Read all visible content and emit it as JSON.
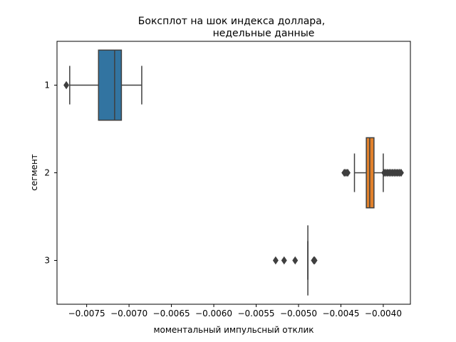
{
  "chart_data": {
    "type": "box",
    "orientation": "horizontal",
    "title_lines": [
      "Бокcплот на шок индекса доллара,",
      "недельные данные"
    ],
    "xlabel": "моментальный импульсный отклик",
    "ylabel": "сегмент",
    "xlim": [
      -0.00785,
      -0.00368
    ],
    "x_ticks": [
      -0.0075,
      -0.007,
      -0.0065,
      -0.006,
      -0.0055,
      -0.005,
      -0.0045,
      -0.004
    ],
    "x_tick_labels": [
      "−0.0075",
      "−0.0070",
      "−0.0065",
      "−0.0060",
      "−0.0055",
      "−0.0050",
      "−0.0045",
      "−0.0040"
    ],
    "categories": [
      "1",
      "2",
      "3"
    ],
    "grid": false,
    "boxes": [
      {
        "category": "1",
        "color": "#3274a1",
        "whisker_low": -0.0077,
        "q1": -0.00736,
        "median": -0.00717,
        "q3": -0.00709,
        "whisker_high": -0.00685,
        "outliers": [
          -0.00774
        ]
      },
      {
        "category": "2",
        "color": "#e1812c",
        "whisker_low": -0.00434,
        "q1": -0.0042,
        "median": -0.00416,
        "q3": -0.00411,
        "whisker_high": -0.004,
        "outliers": [
          -0.00446,
          -0.00444,
          -0.00442,
          -0.00399,
          -0.00397,
          -0.00395,
          -0.00393,
          -0.00391,
          -0.00389,
          -0.00387,
          -0.00385,
          -0.00383,
          -0.00381,
          -0.00379
        ]
      },
      {
        "category": "3",
        "color": "#3a923a",
        "whisker_low": -0.00489,
        "q1": -0.00489,
        "median": -0.00489,
        "q3": -0.00489,
        "whisker_high": -0.00489,
        "outliers": [
          -0.00527,
          -0.00517,
          -0.00504,
          -0.00482,
          -0.00481
        ]
      }
    ]
  }
}
